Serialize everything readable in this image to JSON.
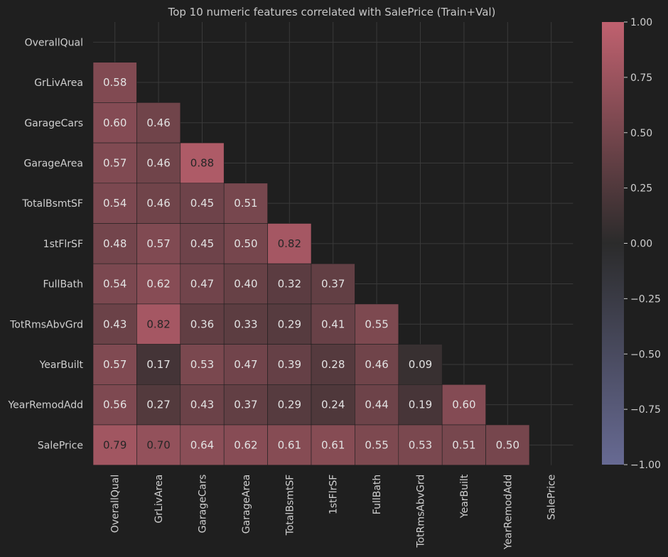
{
  "chart_data": {
    "type": "heatmap",
    "title": "Top 10 numeric features correlated with SalePrice (Train+Val)",
    "labels": [
      "OverallQual",
      "GrLivArea",
      "GarageCars",
      "GarageArea",
      "TotalBsmtSF",
      "1stFlrSF",
      "FullBath",
      "TotRmsAbvGrd",
      "YearBuilt",
      "YearRemodAdd",
      "SalePrice"
    ],
    "lower_triangle": [
      [],
      [
        0.58
      ],
      [
        0.6,
        0.46
      ],
      [
        0.57,
        0.46,
        0.88
      ],
      [
        0.54,
        0.46,
        0.45,
        0.51
      ],
      [
        0.48,
        0.57,
        0.45,
        0.5,
        0.82
      ],
      [
        0.54,
        0.62,
        0.47,
        0.4,
        0.32,
        0.37
      ],
      [
        0.43,
        0.82,
        0.36,
        0.33,
        0.29,
        0.41,
        0.55
      ],
      [
        0.57,
        0.17,
        0.53,
        0.47,
        0.39,
        0.28,
        0.46,
        0.09
      ],
      [
        0.56,
        0.27,
        0.43,
        0.37,
        0.29,
        0.24,
        0.44,
        0.19,
        0.6
      ],
      [
        0.79,
        0.7,
        0.64,
        0.62,
        0.61,
        0.61,
        0.55,
        0.53,
        0.51,
        0.5
      ]
    ],
    "mask": "upper triangle including diagonal",
    "value_format": "0.00",
    "colorbar": {
      "range": [
        -1.0,
        1.0
      ],
      "ticks": [
        "1.00",
        "0.75",
        "0.50",
        "0.25",
        "0.00",
        "−0.25",
        "−0.50",
        "−0.75",
        "−1.00"
      ],
      "colors": {
        "low": "#676a93",
        "mid": "#2b2b2b",
        "high": "#c0616f"
      }
    },
    "grid": true
  }
}
